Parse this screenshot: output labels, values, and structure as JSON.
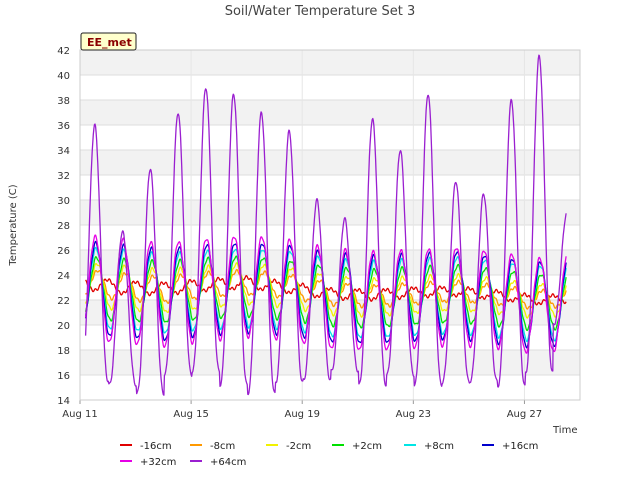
{
  "chart_data": {
    "type": "line",
    "title": "Soil/Water Temperature Set 3",
    "xlabel": "Time",
    "ylabel": "Temperature (C)",
    "badge": "EE_met",
    "ylim": [
      14,
      42
    ],
    "yticks": [
      14,
      16,
      18,
      20,
      22,
      24,
      26,
      28,
      30,
      32,
      34,
      36,
      38,
      40,
      42
    ],
    "xlim": [
      0,
      18
    ],
    "xticks": [
      {
        "value": 0,
        "label": "Aug 11"
      },
      {
        "value": 4,
        "label": "Aug 15"
      },
      {
        "value": 8,
        "label": "Aug 19"
      },
      {
        "value": 12,
        "label": "Aug 23"
      },
      {
        "value": 16,
        "label": "Aug 27"
      }
    ],
    "grid": true,
    "legend_position": "bottom",
    "x_start": 0.2,
    "x_end": 17.5,
    "series": [
      {
        "name": "-16cm",
        "color": "#e00000",
        "peak_phase": 0.0,
        "amp": [
          0.5,
          0.3
        ],
        "base": [
          23.4,
          23.0,
          22.9,
          23.2,
          23.4,
          23.0,
          22.5,
          22.4,
          22.6,
          22.7,
          22.4,
          22.0,
          22.2
        ]
      },
      {
        "name": "-8cm",
        "color": "#ff9900",
        "peak_phase": 0.64,
        "amp": [
          1.1,
          0.7
        ],
        "base": [
          23.4,
          23.1,
          22.8,
          23.2,
          23.4,
          23.1,
          22.5,
          22.3,
          22.5,
          22.7,
          22.4,
          22.0,
          22.4
        ]
      },
      {
        "name": "-2cm",
        "color": "#f2f200",
        "peak_phase": 0.62,
        "amp": [
          1.8,
          1.3
        ],
        "base": [
          23.2,
          23.0,
          22.7,
          23.0,
          23.3,
          23.0,
          22.4,
          22.2,
          22.4,
          22.6,
          22.3,
          21.9,
          22.3
        ]
      },
      {
        "name": "+2cm",
        "color": "#00e000",
        "peak_phase": 0.6,
        "amp": [
          2.5,
          2.2
        ],
        "base": [
          23.0,
          22.8,
          22.6,
          22.9,
          23.1,
          22.8,
          22.3,
          22.1,
          22.3,
          22.5,
          22.2,
          21.8,
          22.1
        ]
      },
      {
        "name": "+8cm",
        "color": "#00e5e5",
        "peak_phase": 0.58,
        "amp": [
          3.2,
          3.0
        ],
        "base": [
          23.0,
          22.8,
          22.5,
          22.8,
          23.0,
          22.8,
          22.2,
          22.0,
          22.2,
          22.4,
          22.1,
          21.7,
          22.0
        ]
      },
      {
        "name": "+16cm",
        "color": "#0000cc",
        "peak_phase": 0.57,
        "amp": [
          3.7,
          3.4
        ],
        "base": [
          23.0,
          22.7,
          22.4,
          22.8,
          23.0,
          22.8,
          22.2,
          22.0,
          22.2,
          22.4,
          22.0,
          21.6,
          22.0
        ]
      },
      {
        "name": "+32cm",
        "color": "#e600e6",
        "peak_phase": 0.55,
        "amp": [
          4.2,
          3.8
        ],
        "base": [
          23.0,
          22.7,
          22.4,
          22.8,
          23.1,
          22.8,
          22.1,
          21.9,
          22.1,
          22.3,
          22.0,
          21.5,
          22.0
        ]
      },
      {
        "name": "+64cm",
        "color": "#9a1fd0",
        "peak_phase": 0.53,
        "peaks": [
          36.0,
          27.5,
          32.5,
          37.0,
          39.0,
          38.5,
          37.0,
          35.5,
          30.0,
          28.5,
          36.5,
          34.0,
          38.5,
          31.5,
          30.5,
          38.0,
          41.5,
          29.0
        ],
        "troughs": [
          15.5,
          15.2,
          14.5,
          16.0,
          16.3,
          15.2,
          14.5,
          15.4,
          15.6,
          16.3,
          15.2,
          16.0,
          15.2,
          15.4,
          15.5,
          15.1,
          16.2,
          20.0
        ]
      }
    ]
  }
}
